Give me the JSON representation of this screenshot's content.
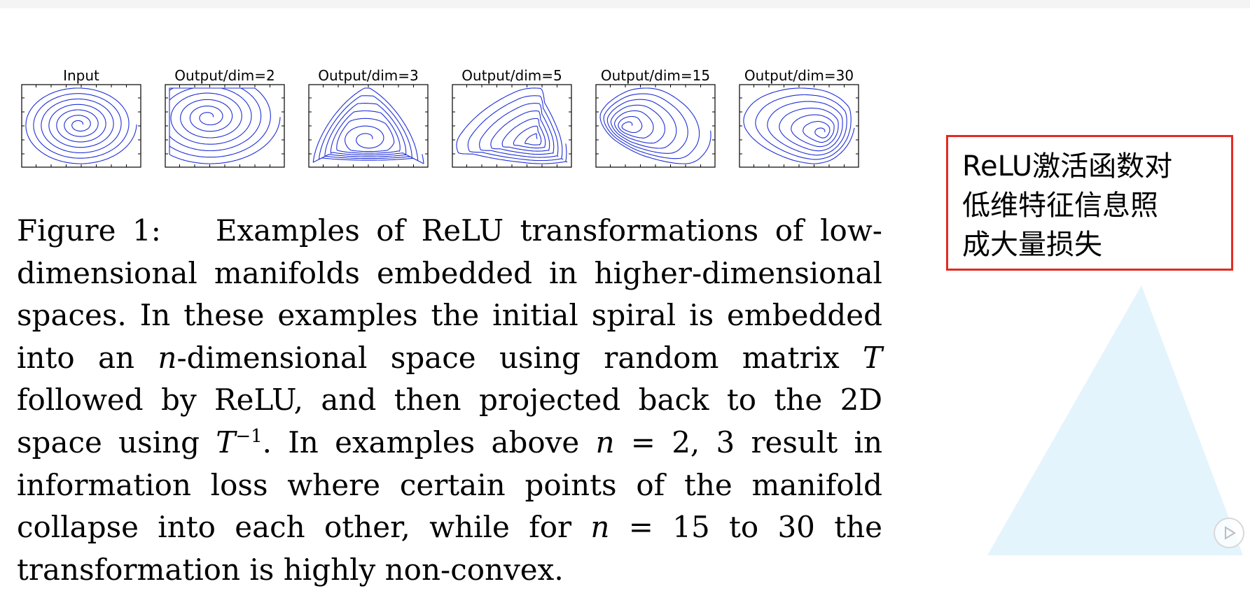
{
  "figure": {
    "panels": [
      {
        "title": "Input",
        "kind": "input"
      },
      {
        "title": "Output/dim=2",
        "kind": "dim2"
      },
      {
        "title": "Output/dim=3",
        "kind": "dim3"
      },
      {
        "title": "Output/dim=5",
        "kind": "dim5"
      },
      {
        "title": "Output/dim=15",
        "kind": "dim15"
      },
      {
        "title": "Output/dim=30",
        "kind": "dim30"
      }
    ],
    "curve_color": "#1f2fd6"
  },
  "caption": {
    "label": "Figure 1:",
    "part1": "Examples of ReLU transformations of low-dimensional manifolds embedded in higher-dimensional spaces. In these examples the initial spiral is embedded into an ",
    "var_n1": "n",
    "part2": "-dimensional space using random matrix ",
    "var_T1": "T",
    "part3": " followed by ReLU, and then projected back to the 2D space using ",
    "var_T2": "T",
    "sup": "−1",
    "part4": ". In examples above ",
    "var_n2": "n",
    "eq1": " = 2, 3",
    "part5": " result in information loss where certain points of the manifold collapse into each other, while for ",
    "var_n3": "n",
    "eq2": " = 15",
    "part6": " to 30 the transformation is highly non-convex."
  },
  "note": {
    "text": "ReLU激活函数对\n低维特征信息照\n成大量损失",
    "border_color": "#e32b23"
  },
  "decor": {
    "triangle_color": "#e4f4fc"
  }
}
